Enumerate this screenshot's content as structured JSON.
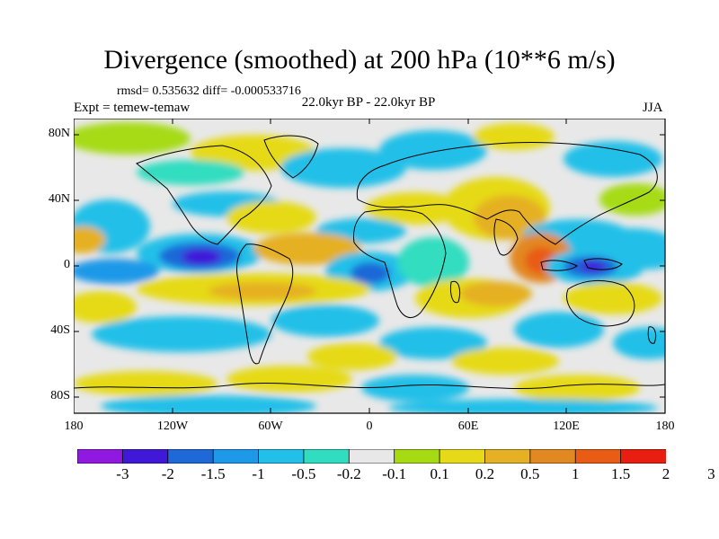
{
  "title": "Divergence (smoothed) at 200 hPa (10**6 m/s)",
  "stats": "rmsd= 0.535632 diff= -0.000533716",
  "period": "22.0kyr BP - 22.0kyr BP",
  "experiment": "Expt = temew-temaw",
  "season": "JJA",
  "lat_labels": [
    "80N",
    "40N",
    "0",
    "40S",
    "80S"
  ],
  "lon_labels": [
    "180",
    "120W",
    "60W",
    "0",
    "60E",
    "120E",
    "180"
  ],
  "colorbar": {
    "colors": [
      "#9018e0",
      "#3f18d8",
      "#1e68d8",
      "#1e98e8",
      "#22c0e8",
      "#30ddc0",
      "#e8e8e8",
      "#a6db14",
      "#e6da18",
      "#e5b024",
      "#e28820",
      "#e85c14",
      "#e81e10"
    ],
    "labels": [
      "-3",
      "-2",
      "-1.5",
      "-1",
      "-0.5",
      "-0.2",
      "-0.1",
      "0.1",
      "0.2",
      "0.5",
      "1",
      "1.5",
      "2",
      "3"
    ]
  }
}
